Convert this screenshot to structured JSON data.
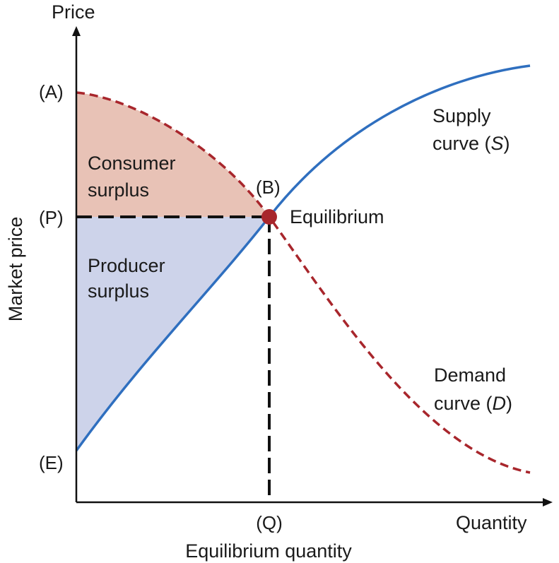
{
  "axes": {
    "y_title": "Price",
    "y_label": "Market price",
    "x_title": "Quantity",
    "x_label": "Equilibrium quantity"
  },
  "points": {
    "A": "(A)",
    "P": "(P)",
    "E": "(E)",
    "B": "(B)",
    "Q": "(Q)"
  },
  "regions": {
    "consumer_line1": "Consumer",
    "consumer_line2": "surplus",
    "producer_line1": "Producer",
    "producer_line2": "surplus"
  },
  "curves": {
    "supply_line1": "Supply",
    "supply_line2_prefix": "curve (",
    "supply_symbol": "S",
    "supply_line2_suffix": ")",
    "demand_line1": "Demand",
    "demand_line2_prefix": "curve (",
    "demand_symbol": "D",
    "demand_line2_suffix": ")"
  },
  "equilibrium_label": "Equilibrium",
  "colors": {
    "supply": "#2f6fbf",
    "demand": "#a8262c",
    "consumer_fill": "#e8c2b6",
    "producer_fill": "#cdd3ea",
    "guide": "#111111",
    "axis": "#111111"
  }
}
